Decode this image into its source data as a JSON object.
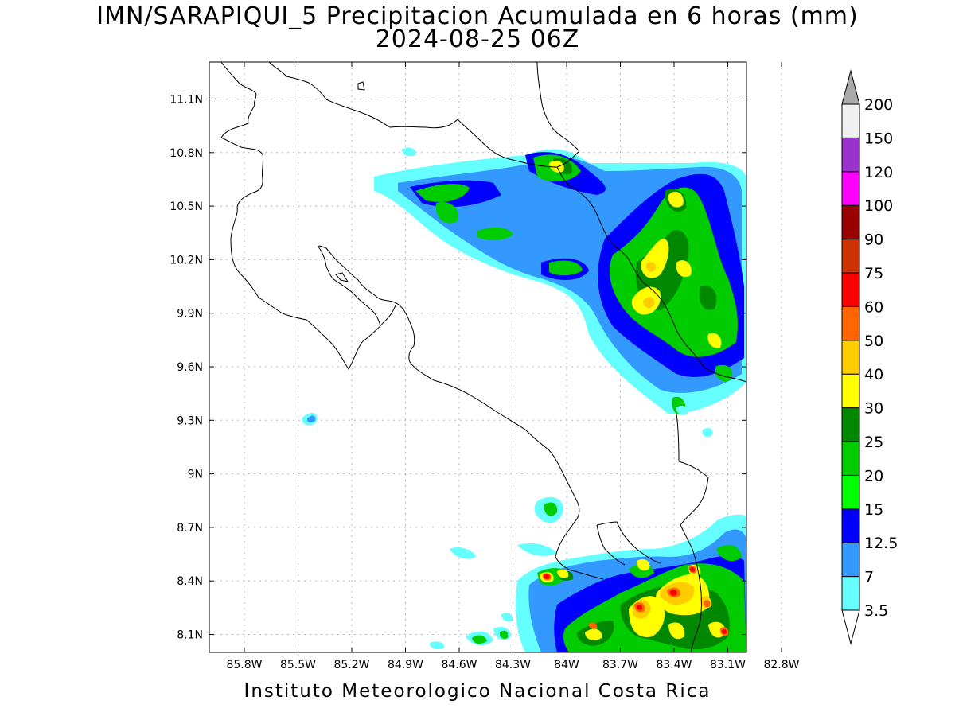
{
  "title": {
    "line1": "IMN/SARAPIQUI_5 Precipitacion Acumulada en 6 horas (mm)",
    "line2": "2024-08-25 06Z"
  },
  "footer": "Instituto Meteorologico Nacional Costa Rica",
  "map": {
    "lon_ticks": [
      "85.8W",
      "85.5W",
      "85.2W",
      "84.9W",
      "84.6W",
      "84.3W",
      "84W",
      "83.7W",
      "83.4W",
      "83.1W",
      "82.8W"
    ],
    "lat_ticks": [
      "11.1N",
      "10.8N",
      "10.5N",
      "10.2N",
      "9.9N",
      "9.6N",
      "9.3N",
      "9N",
      "8.7N",
      "8.4N",
      "8.1N"
    ],
    "grid": true
  },
  "colorbar": {
    "levels": [
      "3.5",
      "7",
      "12.5",
      "15",
      "20",
      "25",
      "30",
      "40",
      "50",
      "60",
      "75",
      "90",
      "100",
      "120",
      "150",
      "200"
    ],
    "colors": [
      "#66ffff",
      "#3399ff",
      "#0000ff",
      "#00ff00",
      "#00cc00",
      "#008800",
      "#ffff00",
      "#ffcc00",
      "#ff6600",
      "#ff0000",
      "#cc3300",
      "#990000",
      "#ff00ff",
      "#9933cc",
      "#f0f0f0",
      "#aaaaaa"
    ]
  },
  "colors": {
    "p35": "#66ffff",
    "p7": "#3399ff",
    "p125": "#0000ff",
    "p15": "#00ff00",
    "p20": "#00cc00",
    "p25": "#008800",
    "p30": "#ffff00",
    "p40": "#ffcc00",
    "p50": "#ff6600",
    "p60": "#ff0000"
  }
}
